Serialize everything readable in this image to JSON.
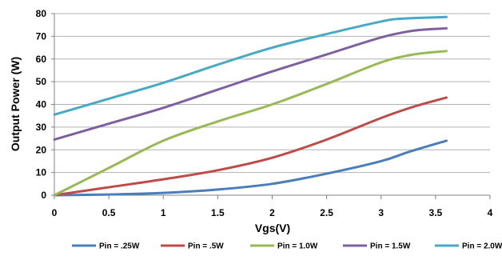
{
  "chart_data": {
    "type": "line",
    "title": "",
    "xlabel": "Vgs(V)",
    "ylabel": "Output Power (W)",
    "xlim": [
      0,
      4
    ],
    "ylim": [
      0,
      80
    ],
    "x_ticks": [
      "0",
      "0.5",
      "1",
      "1.5",
      "2",
      "2.5",
      "3",
      "3.5",
      "4"
    ],
    "y_ticks": [
      "0",
      "10",
      "20",
      "30",
      "40",
      "50",
      "60",
      "70",
      "80"
    ],
    "grid": "horizontal",
    "legend_position": "bottom",
    "series": [
      {
        "name": "Pin = .25W",
        "color": "#4a7ebb",
        "x": [
          0,
          0.5,
          1.0,
          1.5,
          2.0,
          2.5,
          3.0,
          3.25,
          3.6
        ],
        "y": [
          0,
          0.3,
          1.0,
          2.5,
          5.0,
          9.5,
          15.0,
          19.0,
          24.0
        ]
      },
      {
        "name": "Pin = .5W",
        "color": "#be4b48",
        "x": [
          0,
          0.5,
          1.0,
          1.5,
          2.0,
          2.5,
          3.0,
          3.3,
          3.6
        ],
        "y": [
          0,
          3.5,
          7.0,
          11.0,
          16.5,
          24.5,
          34.0,
          39.0,
          43.0
        ]
      },
      {
        "name": "Pin = 1.0W",
        "color": "#98b954",
        "x": [
          0,
          0.5,
          1.0,
          1.5,
          2.0,
          2.5,
          3.0,
          3.3,
          3.6
        ],
        "y": [
          0,
          12.0,
          24.0,
          32.5,
          40.0,
          49.0,
          58.5,
          62.0,
          63.5
        ]
      },
      {
        "name": "Pin = 1.5W",
        "color": "#7d60a0",
        "x": [
          0,
          0.5,
          1.0,
          1.5,
          2.0,
          2.5,
          3.0,
          3.3,
          3.6
        ],
        "y": [
          24.5,
          31.5,
          38.5,
          46.5,
          54.5,
          62.0,
          69.5,
          72.5,
          73.5
        ]
      },
      {
        "name": "Pin = 2.0W",
        "color": "#46aac5",
        "x": [
          0,
          0.5,
          1.0,
          1.5,
          2.0,
          2.5,
          3.0,
          3.2,
          3.6
        ],
        "y": [
          35.5,
          42.5,
          49.5,
          57.5,
          65.0,
          71.0,
          76.5,
          77.8,
          78.5
        ]
      }
    ]
  }
}
